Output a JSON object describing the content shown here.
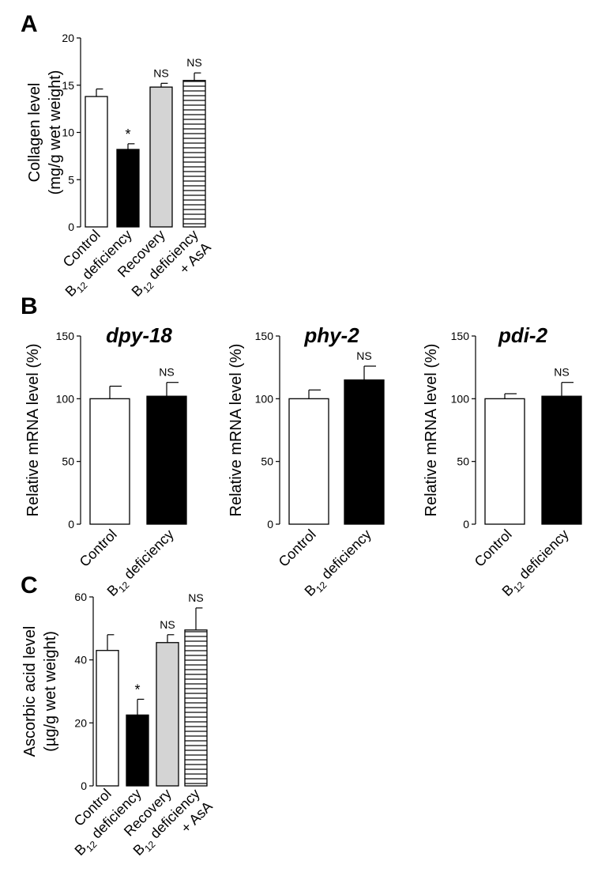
{
  "chart_data": [
    {
      "panel": "A",
      "type": "bar",
      "ylabel": [
        "Collagen level",
        "(mg/g wet weight)"
      ],
      "ylim": [
        0,
        20
      ],
      "yticks": [
        0,
        5,
        10,
        15,
        20
      ],
      "categories": [
        {
          "main": "Control",
          "sub": "",
          "rest": "",
          "line2": ""
        },
        {
          "main": "B",
          "sub": "12",
          "rest": " deficiency",
          "line2": ""
        },
        {
          "main": "Recovery",
          "sub": "",
          "rest": "",
          "line2": ""
        },
        {
          "main": "B",
          "sub": "12",
          "rest": " deficiency",
          "line2": "+ AsA"
        }
      ],
      "values": [
        13.8,
        8.2,
        14.8,
        15.5
      ],
      "errors": [
        0.8,
        0.6,
        0.4,
        0.8
      ],
      "annotations": [
        "",
        "*",
        "NS",
        "NS"
      ],
      "fills": [
        "white",
        "black",
        "gray",
        "hatch"
      ]
    },
    {
      "panel": "B",
      "type": "bar",
      "title": "dpy-18",
      "ylabel": [
        "Relative mRNA level (%)"
      ],
      "ylim": [
        0,
        150
      ],
      "yticks": [
        0,
        50,
        100,
        150
      ],
      "categories": [
        {
          "main": "Control",
          "sub": "",
          "rest": "",
          "line2": ""
        },
        {
          "main": "B",
          "sub": "12",
          "rest": " deficiency",
          "line2": ""
        }
      ],
      "values": [
        100,
        102
      ],
      "errors": [
        10,
        11
      ],
      "annotations": [
        "",
        "NS"
      ],
      "fills": [
        "white",
        "black"
      ]
    },
    {
      "panel": "",
      "type": "bar",
      "title": "phy-2",
      "ylabel": [
        "Relative mRNA level (%)"
      ],
      "ylim": [
        0,
        150
      ],
      "yticks": [
        0,
        50,
        100,
        150
      ],
      "categories": [
        {
          "main": "Control",
          "sub": "",
          "rest": "",
          "line2": ""
        },
        {
          "main": "B",
          "sub": "12",
          "rest": " deficiency",
          "line2": ""
        }
      ],
      "values": [
        100,
        115
      ],
      "errors": [
        7,
        11
      ],
      "annotations": [
        "",
        "NS"
      ],
      "fills": [
        "white",
        "black"
      ]
    },
    {
      "panel": "",
      "type": "bar",
      "title": "pdi-2",
      "ylabel": [
        "Relative mRNA level (%)"
      ],
      "ylim": [
        0,
        150
      ],
      "yticks": [
        0,
        50,
        100,
        150
      ],
      "categories": [
        {
          "main": "Control",
          "sub": "",
          "rest": "",
          "line2": ""
        },
        {
          "main": "B",
          "sub": "12",
          "rest": " deficiency",
          "line2": ""
        }
      ],
      "values": [
        100,
        102
      ],
      "errors": [
        4,
        11
      ],
      "annotations": [
        "",
        "NS"
      ],
      "fills": [
        "white",
        "black"
      ]
    },
    {
      "panel": "C",
      "type": "bar",
      "ylabel": [
        "Ascorbic acid  level",
        "(µg/g wet weight)"
      ],
      "ylim": [
        0,
        60
      ],
      "yticks": [
        0,
        20,
        40,
        60
      ],
      "categories": [
        {
          "main": "Control",
          "sub": "",
          "rest": "",
          "line2": ""
        },
        {
          "main": "B",
          "sub": "12",
          "rest": " deficiency",
          "line2": ""
        },
        {
          "main": "Recovery",
          "sub": "",
          "rest": "",
          "line2": ""
        },
        {
          "main": "B",
          "sub": "12",
          "rest": " deficiency",
          "line2": "+ AsA"
        }
      ],
      "values": [
        43,
        22.5,
        45.5,
        49.5
      ],
      "errors": [
        5,
        5,
        2.5,
        7
      ],
      "annotations": [
        "",
        "*",
        "NS",
        "NS"
      ],
      "fills": [
        "white",
        "black",
        "gray",
        "hatch"
      ]
    }
  ],
  "colors": {
    "bar_gray": "#d4d4d4",
    "ink": "#000000"
  }
}
